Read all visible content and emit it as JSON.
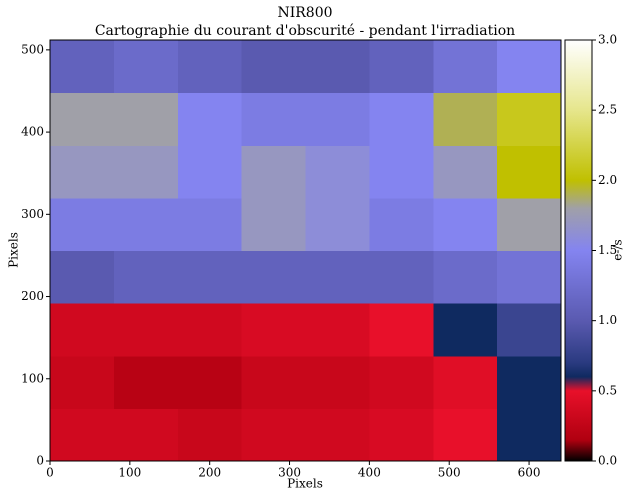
{
  "chart_data": {
    "type": "heatmap",
    "title": "NIR800",
    "subtitle": "Cartographie du courant d'obscurité - pendant l'irradiation",
    "x_label": "Pixels",
    "y_label": "Pixels",
    "colorbar_label": "e-/s",
    "xlim": [
      0,
      640
    ],
    "ylim": [
      0,
      512
    ],
    "xticks": [
      0,
      100,
      200,
      300,
      400,
      500,
      600
    ],
    "yticks": [
      0,
      100,
      200,
      300,
      400,
      500
    ],
    "x_edges": [
      0,
      80,
      160,
      240,
      320,
      400,
      480,
      560,
      640
    ],
    "y_edges": [
      0,
      64,
      128,
      192,
      256,
      320,
      384,
      448,
      512
    ],
    "z": [
      [
        0.35,
        0.35,
        0.3,
        0.35,
        0.35,
        0.4,
        0.5,
        0.6
      ],
      [
        0.3,
        0.2,
        0.2,
        0.3,
        0.3,
        0.35,
        0.45,
        0.6
      ],
      [
        0.35,
        0.35,
        0.35,
        0.4,
        0.4,
        0.5,
        0.6,
        0.8
      ],
      [
        1.0,
        1.1,
        1.1,
        1.1,
        1.1,
        1.1,
        1.2,
        1.3
      ],
      [
        1.4,
        1.4,
        1.4,
        1.7,
        1.6,
        1.4,
        1.5,
        1.8
      ],
      [
        1.7,
        1.7,
        1.5,
        1.7,
        1.6,
        1.5,
        1.7,
        2.0
      ],
      [
        1.8,
        1.8,
        1.5,
        1.4,
        1.4,
        1.5,
        1.9,
        2.1
      ],
      [
        1.1,
        1.2,
        1.1,
        1.0,
        1.0,
        1.1,
        1.3,
        1.5
      ]
    ],
    "zlim": [
      0,
      3
    ],
    "zticks": [
      {
        "value": 0,
        "label": "0.0"
      },
      {
        "value": 0.5,
        "label": "0.5"
      },
      {
        "value": 1,
        "label": "1.0"
      },
      {
        "value": 1.5,
        "label": "1.5"
      },
      {
        "value": 2,
        "label": "2.0"
      },
      {
        "value": 2.5,
        "label": "2.5"
      },
      {
        "value": 3,
        "label": "3.0"
      }
    ],
    "colorscale": [
      [
        0,
        "#000000"
      ],
      [
        0.15,
        "#b00010"
      ],
      [
        0.5,
        "#e8102a"
      ],
      [
        0.6,
        "#0f2a60"
      ],
      [
        0.7,
        "#2a3a80"
      ],
      [
        1.0,
        "#5a5ab0"
      ],
      [
        1.5,
        "#8484f0"
      ],
      [
        1.8,
        "#a0a0a8"
      ],
      [
        2.0,
        "#c0c000"
      ],
      [
        2.5,
        "#e6e68c"
      ],
      [
        3.0,
        "#ffffff"
      ]
    ]
  }
}
